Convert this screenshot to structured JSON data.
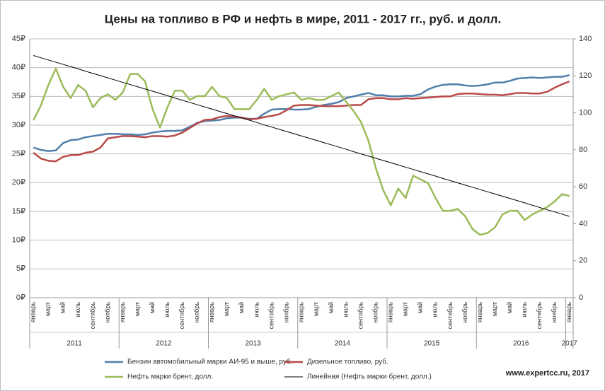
{
  "chart_data": {
    "type": "line",
    "title": "Цены на топливо в РФ и нефть в мире, 2011 - 2017 гг., руб. и долл.",
    "categories": [
      "январь",
      null,
      "март",
      null,
      "май",
      null,
      "июль",
      null,
      "сентябрь",
      null,
      "ноябрь",
      null,
      "январь",
      null,
      "март",
      null,
      "май",
      null,
      "июль",
      null,
      "сентябрь",
      null,
      "ноябрь",
      null,
      "январь",
      null,
      "март",
      null,
      "май",
      null,
      "июль",
      null,
      "сентябрь",
      null,
      "ноябрь",
      null,
      "январь",
      null,
      "март",
      null,
      "май",
      null,
      "июль",
      null,
      "сентябрь",
      null,
      "ноябрь",
      null,
      "январь",
      null,
      "март",
      null,
      "май",
      null,
      "июль",
      null,
      "сентябрь",
      null,
      "ноябрь",
      null,
      "январь",
      null,
      "март",
      null,
      "май",
      null,
      "июль",
      null,
      "сентябрь",
      null,
      "ноябрь",
      null,
      "январь"
    ],
    "years": [
      "2011",
      "2012",
      "2013",
      "2014",
      "2015",
      "2016",
      "2017"
    ],
    "ylim": [
      0,
      45
    ],
    "yticks": [
      {
        "value": 0,
        "label": "0₽"
      },
      {
        "value": 5,
        "label": "5₽"
      },
      {
        "value": 10,
        "label": "10₽"
      },
      {
        "value": 15,
        "label": "15₽"
      },
      {
        "value": 20,
        "label": "20₽"
      },
      {
        "value": 25,
        "label": "25₽"
      },
      {
        "value": 30,
        "label": "30₽"
      },
      {
        "value": 35,
        "label": "35₽"
      },
      {
        "value": 40,
        "label": "40₽"
      },
      {
        "value": 45,
        "label": "45₽"
      }
    ],
    "y2lim": [
      0,
      140
    ],
    "y2ticks": [
      0,
      20,
      40,
      60,
      80,
      100,
      120,
      140
    ],
    "grid": true,
    "series": [
      {
        "name": "Бензин автомобильный марки АИ-95 и выше, руб.",
        "color": "#4f7fac",
        "axis": "y",
        "values": [
          26.1,
          25.7,
          25.5,
          25.6,
          26.9,
          27.4,
          27.5,
          27.9,
          28.1,
          28.3,
          28.5,
          28.5,
          28.4,
          28.4,
          28.3,
          28.4,
          28.7,
          28.9,
          29.0,
          29.0,
          29.1,
          29.7,
          30.4,
          30.7,
          30.8,
          30.9,
          31.2,
          31.3,
          31.3,
          31.1,
          31.1,
          32.0,
          32.7,
          32.8,
          32.8,
          32.7,
          32.7,
          32.8,
          33.2,
          33.5,
          33.7,
          34.0,
          34.7,
          35.0,
          35.3,
          35.6,
          35.2,
          35.2,
          35.0,
          35.0,
          35.1,
          35.1,
          35.4,
          36.2,
          36.7,
          37.0,
          37.1,
          37.1,
          36.9,
          36.8,
          36.9,
          37.1,
          37.4,
          37.4,
          37.7,
          38.1,
          38.2,
          38.3,
          38.2,
          38.3,
          38.4,
          38.4,
          38.7
        ]
      },
      {
        "name": "Дизельное топливо, руб.",
        "color": "#b94a48",
        "axis": "y",
        "values": [
          25.2,
          24.2,
          23.8,
          23.7,
          24.5,
          24.8,
          24.8,
          25.2,
          25.4,
          26.1,
          27.7,
          27.9,
          28.1,
          28.1,
          28.0,
          27.9,
          28.1,
          28.1,
          28.0,
          28.2,
          28.7,
          29.5,
          30.3,
          30.9,
          31.0,
          31.4,
          31.6,
          31.5,
          31.3,
          31.0,
          31.1,
          31.4,
          31.6,
          31.9,
          32.6,
          33.4,
          33.5,
          33.5,
          33.4,
          33.3,
          33.3,
          33.3,
          33.4,
          33.5,
          33.5,
          34.5,
          34.7,
          34.7,
          34.5,
          34.5,
          34.7,
          34.6,
          34.7,
          34.8,
          34.9,
          35.0,
          35.0,
          35.4,
          35.5,
          35.5,
          35.4,
          35.3,
          35.3,
          35.2,
          35.4,
          35.6,
          35.6,
          35.5,
          35.5,
          35.8,
          36.5,
          37.1,
          37.6
        ]
      },
      {
        "name": "Нефть марки брент, долл.",
        "color": "#9bbb59",
        "axis": "y2",
        "values": [
          96,
          104,
          115,
          124,
          114,
          108,
          115,
          112,
          103,
          108,
          110,
          107,
          111,
          121,
          121,
          117,
          102,
          92,
          103,
          112,
          112,
          107,
          109,
          109,
          114,
          109,
          108,
          102,
          102,
          102,
          107,
          113,
          107,
          109,
          110,
          111,
          107,
          108,
          107,
          107,
          109,
          111,
          106,
          101,
          95,
          85,
          70,
          58,
          50,
          59,
          54,
          66,
          64,
          62,
          54,
          47,
          47,
          48,
          44,
          37,
          34,
          35,
          38,
          45,
          47,
          47,
          42,
          45,
          47,
          49,
          52,
          56,
          55
        ]
      },
      {
        "name": "Линейная (Нефть марки брент, долл.)",
        "color": "#000000",
        "axis": "y2",
        "values": [
          131.0,
          129.8,
          128.6,
          127.4,
          126.2,
          125.0,
          123.8,
          122.5,
          121.3,
          120.1,
          118.9,
          117.7,
          116.5,
          115.3,
          114.1,
          112.9,
          111.7,
          110.5,
          109.3,
          108.0,
          106.8,
          105.6,
          104.4,
          103.2,
          102.0,
          100.8,
          99.6,
          98.4,
          97.2,
          96.0,
          94.8,
          93.5,
          92.3,
          91.1,
          89.9,
          88.7,
          87.5,
          86.3,
          85.1,
          83.9,
          82.7,
          81.5,
          80.3,
          79.0,
          77.8,
          76.6,
          75.4,
          74.2,
          73.0,
          71.8,
          70.6,
          69.4,
          68.2,
          67.0,
          65.8,
          64.5,
          63.3,
          62.1,
          60.9,
          59.7,
          58.5,
          57.3,
          56.1,
          54.9,
          53.7,
          52.5,
          51.3,
          50.0,
          48.8,
          47.6,
          46.4,
          45.2,
          44.0
        ]
      }
    ],
    "source": "www.expertcc.ru, 2017"
  }
}
